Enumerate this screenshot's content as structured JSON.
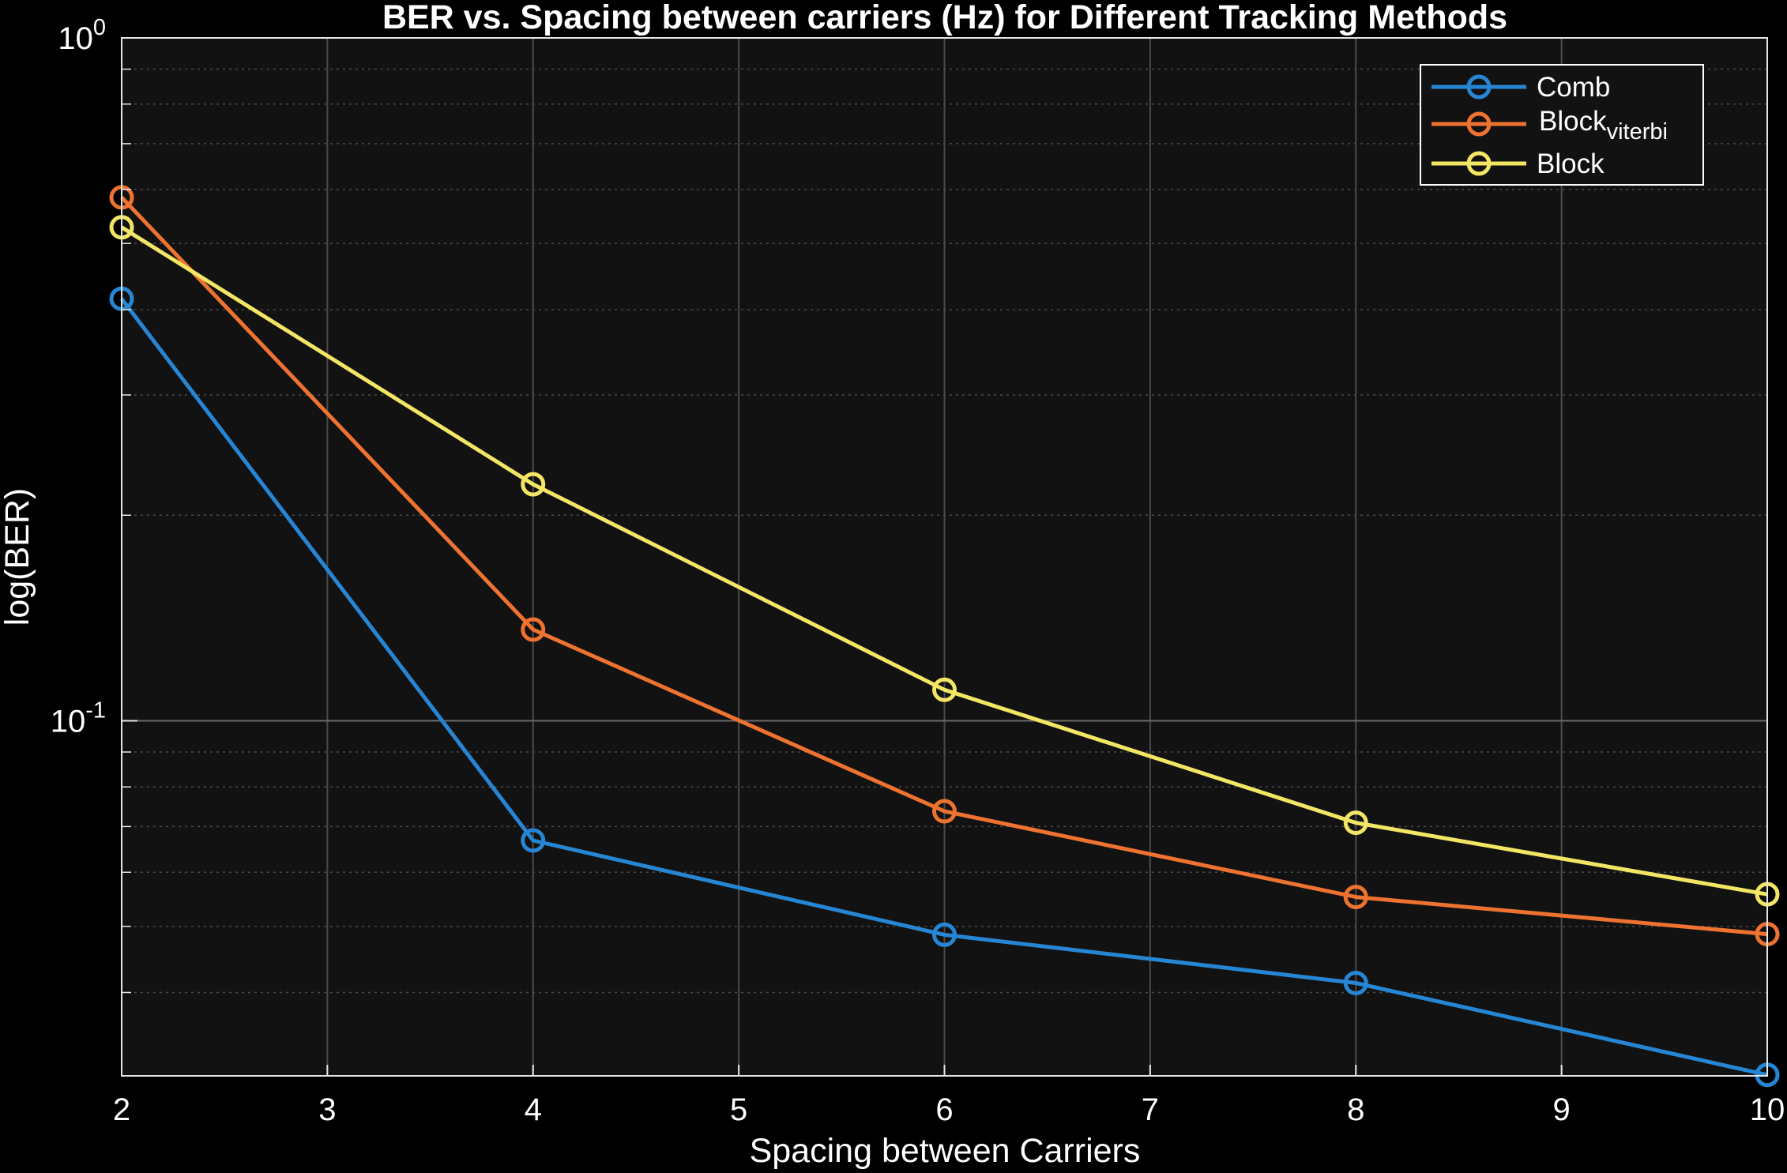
{
  "chart_data": {
    "type": "line",
    "title": "BER vs. Spacing between carriers (Hz) for Different Tracking Methods",
    "xlabel": "Spacing between Carriers",
    "ylabel": "log(BER)",
    "yscale": "log",
    "xlim": [
      2,
      10
    ],
    "ylim": [
      0.0302,
      1
    ],
    "xticks": [
      "2",
      "3",
      "4",
      "5",
      "6",
      "7",
      "8",
      "9",
      "10"
    ],
    "yticks": [
      {
        "base": "10",
        "exp": "0",
        "value": 1
      },
      {
        "base": "10",
        "exp": "-1",
        "value": 0.1
      }
    ],
    "grid": true,
    "legend_position": "top-right",
    "background": "#121212",
    "series": [
      {
        "name": "Comb",
        "color": "#2686d4",
        "x": [
          2,
          4,
          6,
          8,
          10
        ],
        "y": [
          0.415,
          0.0668,
          0.0486,
          0.0413,
          0.0303
        ]
      },
      {
        "name": "Blockviterbi",
        "legend_main": "Block",
        "legend_sub": "viterbi",
        "color": "#ee7230",
        "x": [
          2,
          4,
          6,
          8,
          10
        ],
        "y": [
          0.584,
          0.136,
          0.0737,
          0.0552,
          0.0487
        ]
      },
      {
        "name": "Block",
        "color": "#f3e664",
        "x": [
          2,
          4,
          6,
          8,
          10
        ],
        "y": [
          0.528,
          0.222,
          0.111,
          0.0709,
          0.0557
        ]
      }
    ]
  }
}
